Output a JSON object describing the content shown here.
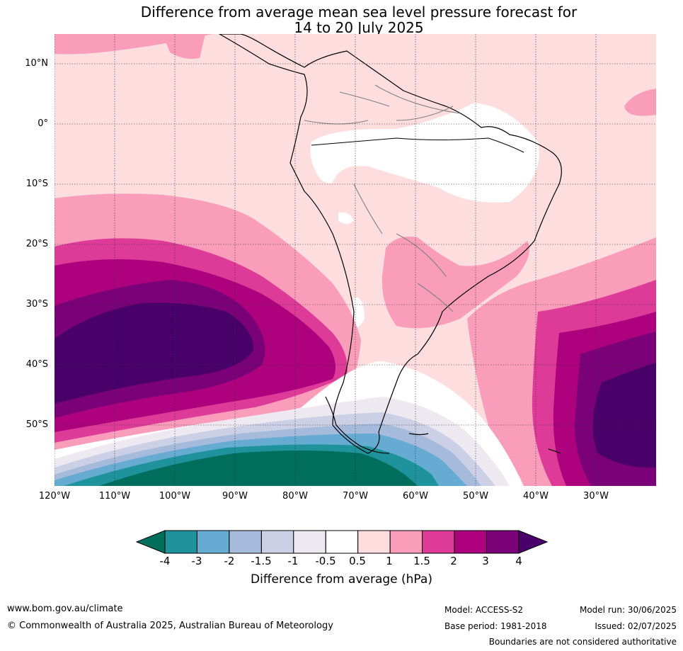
{
  "title": {
    "line1": "Difference from average mean sea level pressure forecast for",
    "line2": "14 to 20 July 2025"
  },
  "map": {
    "lat_labels": [
      "10°N",
      "0°",
      "10°S",
      "20°S",
      "30°S",
      "40°S",
      "50°S"
    ],
    "lon_labels": [
      "120°W",
      "110°W",
      "100°W",
      "90°W",
      "80°W",
      "70°W",
      "60°W",
      "50°W",
      "40°W",
      "30°W"
    ],
    "extent": {
      "lon_min": -120,
      "lon_max": -20,
      "lat_min": -60,
      "lat_max": 15
    }
  },
  "colorbar": {
    "title": "Difference from average (hPa)",
    "tick_labels": [
      "-4",
      "-3",
      "-2",
      "-1.5",
      "-1",
      "-0.5",
      "0.5",
      "1",
      "1.5",
      "2",
      "3",
      "4"
    ],
    "colors": [
      "#006e5c",
      "#1f939c",
      "#66abd2",
      "#a6bbdb",
      "#ccd0e6",
      "#eee9f1",
      "#ffffff",
      "#fdddde",
      "#fa9dbb",
      "#de3a98",
      "#ae017e",
      "#7a0177",
      "#49006a"
    ]
  },
  "footer": {
    "website": "www.bom.gov.au/climate",
    "copyright": "© Commonwealth of Australia 2025, Australian Bureau of Meteorology",
    "model": "Model: ACCESS-S2",
    "base_period": "Base period: 1981-2018",
    "model_run": "Model run: 30/06/2025",
    "issued": "Issued: 02/07/2025",
    "boundaries_note": "Boundaries are not considered authoritative"
  }
}
